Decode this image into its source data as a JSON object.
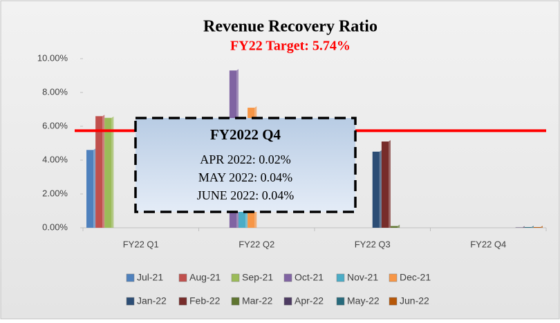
{
  "chart_data": {
    "type": "bar",
    "title": "Revenue Recovery Ratio",
    "subtitle": "FY22 Target: 5.74%",
    "target": 5.74,
    "categories": [
      "FY22 Q1",
      "FY22 Q2",
      "FY22 Q3",
      "FY22 Q4"
    ],
    "series": [
      {
        "name": "Jul-21",
        "color": "#4f81bd",
        "values": [
          4.6,
          null,
          null,
          null
        ]
      },
      {
        "name": "Aug-21",
        "color": "#c0504d",
        "values": [
          6.6,
          null,
          null,
          null
        ]
      },
      {
        "name": "Sep-21",
        "color": "#9bbb59",
        "values": [
          6.5,
          null,
          null,
          null
        ]
      },
      {
        "name": "Oct-21",
        "color": "#8064a2",
        "values": [
          null,
          9.3,
          null,
          null
        ]
      },
      {
        "name": "Nov-21",
        "color": "#4bacc6",
        "values": [
          null,
          6.0,
          null,
          null
        ]
      },
      {
        "name": "Dec-21",
        "color": "#f79646",
        "values": [
          null,
          7.1,
          null,
          null
        ]
      },
      {
        "name": "Jan-22",
        "color": "#2c4d75",
        "values": [
          null,
          null,
          4.5,
          null
        ]
      },
      {
        "name": "Feb-22",
        "color": "#772c2a",
        "values": [
          null,
          null,
          5.1,
          null
        ]
      },
      {
        "name": "Mar-22",
        "color": "#5f7530",
        "values": [
          null,
          null,
          0.1,
          null
        ]
      },
      {
        "name": "Apr-22",
        "color": "#4d3b62",
        "values": [
          null,
          null,
          null,
          0.02
        ]
      },
      {
        "name": "May-22",
        "color": "#276a7c",
        "values": [
          null,
          null,
          null,
          0.04
        ]
      },
      {
        "name": "Jun-22",
        "color": "#b65708",
        "values": [
          null,
          null,
          null,
          0.04
        ]
      }
    ],
    "ylim": [
      0,
      10
    ],
    "yticks": [
      {
        "value": 0,
        "label": "0.00%"
      },
      {
        "value": 2,
        "label": "2.00%"
      },
      {
        "value": 4,
        "label": "4.00%"
      },
      {
        "value": 6,
        "label": "6.00%"
      },
      {
        "value": 8,
        "label": "8.00%"
      },
      {
        "value": 10,
        "label": "10.00%"
      }
    ],
    "annotation": {
      "title": "FY2022 Q4",
      "lines": [
        "APR 2022: 0.02%",
        "MAY 2022: 0.04%",
        "JUNE 2022: 0.04%"
      ]
    }
  }
}
